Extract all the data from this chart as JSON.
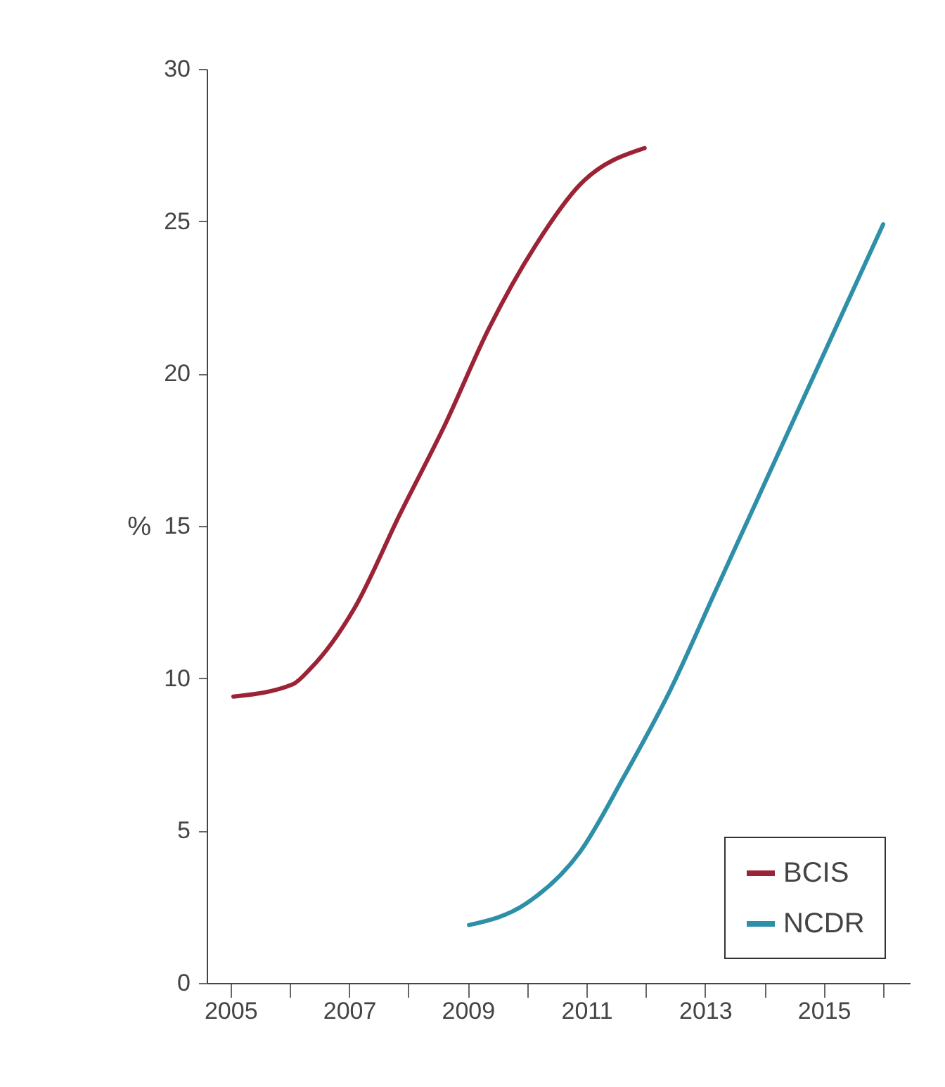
{
  "chart_data": {
    "type": "line",
    "ylabel": "%",
    "xlim": [
      2004.6,
      2016.45
    ],
    "ylim": [
      0,
      30
    ],
    "xticks": [
      2005,
      {
        "value": 2006,
        "label": null
      },
      2007,
      {
        "value": 2008,
        "label": null
      },
      2009,
      {
        "value": 2010,
        "label": null
      },
      2011,
      {
        "value": 2012,
        "label": null
      },
      2013,
      {
        "value": 2014,
        "label": null
      },
      2015,
      {
        "value": 2016,
        "label": null
      }
    ],
    "yticks": [
      0,
      5,
      10,
      15,
      20,
      25,
      30
    ],
    "grid": false,
    "legend": "bottom right",
    "line_style": "solid",
    "marker": "none",
    "series": [
      {
        "name": "BCIS",
        "color": "#9b2335",
        "x": [
          2005.05,
          2006.05,
          2006.34,
          2007.09,
          2007.86,
          2008.61,
          2009.36,
          2010.14,
          2010.89,
          2011.98
        ],
        "values": [
          9.4,
          9.8,
          10.3,
          12.3,
          15.4,
          18.3,
          21.5,
          24.2,
          26.2,
          27.4
        ]
      },
      {
        "name": "NCDR",
        "color": "#2e8fa8",
        "x": [
          2009.02,
          2009.98,
          2010.89,
          2011.64,
          2012.41,
          2013.16,
          2013.91,
          2014.59,
          2016.0
        ],
        "values": [
          1.9,
          2.6,
          4.3,
          6.8,
          9.6,
          12.8,
          16.0,
          18.9,
          24.9
        ]
      }
    ]
  }
}
